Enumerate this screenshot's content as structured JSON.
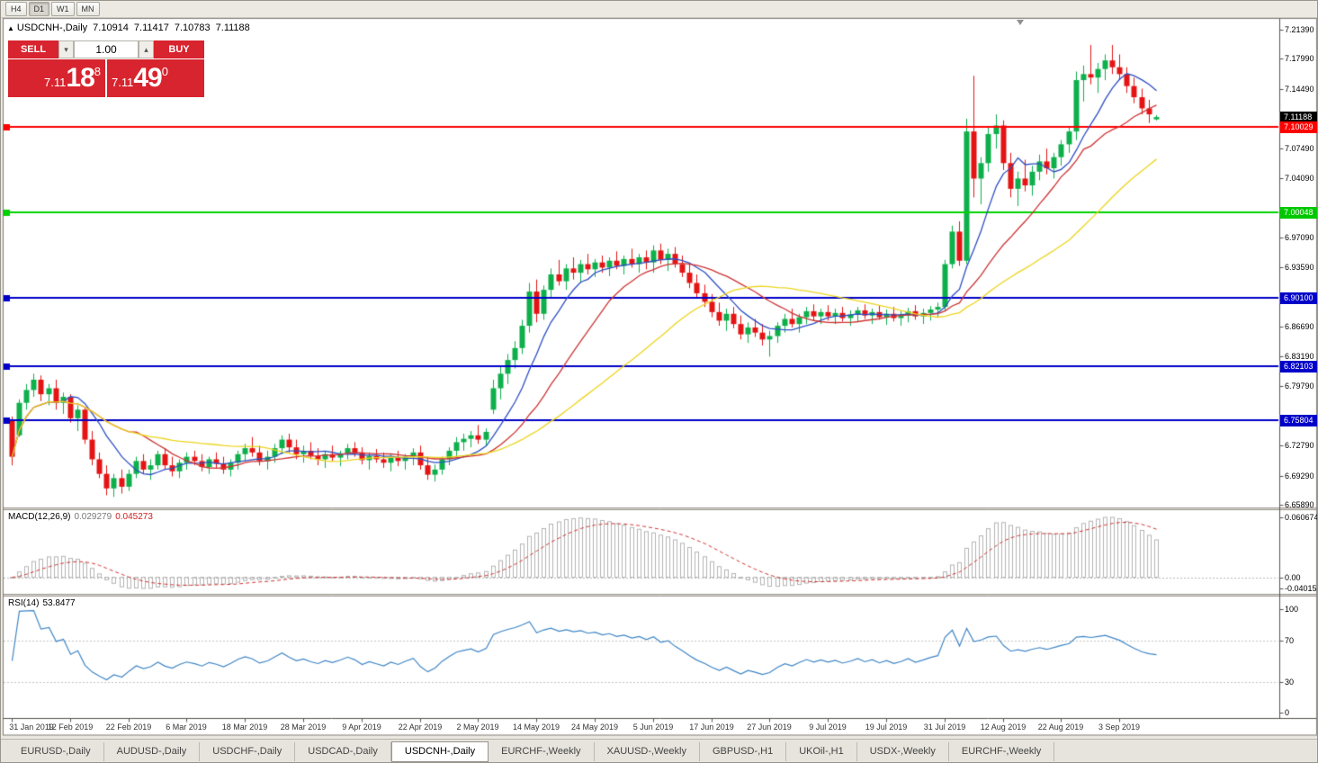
{
  "toolbar": {
    "timeframes": [
      "H4",
      "D1",
      "W1",
      "MN"
    ],
    "active_timeframe": "D1"
  },
  "chart": {
    "info_line": {
      "collapse_icon": "▲",
      "title": "USDCNH-,Daily",
      "open": "7.10914",
      "high": "7.11417",
      "low": "7.10783",
      "close": "7.11188"
    },
    "trade_panel": {
      "sell_label": "SELL",
      "buy_label": "BUY",
      "volume": "1.00",
      "spinner_down_icon": "▾",
      "spinner_up_icon": "▴",
      "sell_price_prefix": "7.11",
      "sell_price_main": "18",
      "sell_price_sup": "8",
      "buy_price_prefix": "7.11",
      "buy_price_main": "49",
      "buy_price_sup": "0"
    },
    "price_axis": {
      "labels": [
        "7.21390",
        "7.17990",
        "7.14490",
        "7.07490",
        "7.04090",
        "6.97090",
        "6.93590",
        "6.86690",
        "6.83190",
        "6.79790",
        "6.72790",
        "6.69290",
        "6.65890"
      ],
      "badges": [
        {
          "text": "7.11188",
          "price": 7.11188,
          "bg": "#000000",
          "name": "current-price-badge"
        },
        {
          "text": "7.10029",
          "price": 7.10029,
          "bg": "#ff0000",
          "name": "resistance-line-badge"
        },
        {
          "text": "7.00048",
          "price": 7.00048,
          "bg": "#00c800",
          "name": "support-line-badge-green"
        },
        {
          "text": "6.90100",
          "price": 6.901,
          "bg": "#0000c8",
          "name": "support-line-badge-blue-1"
        },
        {
          "text": "6.82103",
          "price": 6.82103,
          "bg": "#0000c8",
          "name": "support-line-badge-blue-2"
        },
        {
          "text": "6.75804",
          "price": 6.75804,
          "bg": "#0000c8",
          "name": "support-line-badge-blue-3"
        }
      ]
    },
    "hlines": [
      {
        "price": 7.10029,
        "color": "#ff0000"
      },
      {
        "price": 7.00048,
        "color": "#00d200"
      },
      {
        "price": 6.901,
        "color": "#0000c8"
      },
      {
        "price": 6.82103,
        "color": "#0000c8"
      },
      {
        "price": 6.75804,
        "color": "#0000c8"
      }
    ],
    "colors": {
      "bull": "#0db04b",
      "bear": "#e51414",
      "ma_fast": "#2e4fc4",
      "ma_mid": "#cf3434",
      "ma_slow": "#ecd51e",
      "macd_hist": "#b4b4b4",
      "macd_signal": "#d23434",
      "rsi_line": "#3f86c6"
    }
  },
  "chart_data": {
    "type": "candlestick",
    "title": "USDCNH-,Daily",
    "label_every_n_candles": 8,
    "dates": [
      "31 Jan 2019",
      "12 Feb 2019",
      "22 Feb 2019",
      "6 Mar 2019",
      "18 Mar 2019",
      "28 Mar 2019",
      "9 Apr 2019",
      "22 Apr 2019",
      "2 May 2019",
      "14 May 2019",
      "24 May 2019",
      "5 Jun 2019",
      "17 Jun 2019",
      "27 Jun 2019",
      "9 Jul 2019",
      "19 Jul 2019",
      "31 Jul 2019",
      "12 Aug 2019",
      "22 Aug 2019",
      "3 Sep 2019"
    ],
    "ma_periods": [
      8,
      17,
      34
    ],
    "y_axis_anchor": {
      "top_price": 7.2139,
      "bottom_price": 6.6589
    },
    "ohlc": [
      [
        6.758,
        6.762,
        6.705,
        6.715
      ],
      [
        6.74,
        6.782,
        6.738,
        6.778
      ],
      [
        6.778,
        6.8,
        6.77,
        6.793
      ],
      [
        6.793,
        6.812,
        6.785,
        6.805
      ],
      [
        6.805,
        6.81,
        6.78,
        6.788
      ],
      [
        6.788,
        6.8,
        6.775,
        6.795
      ],
      [
        6.795,
        6.805,
        6.77,
        6.778
      ],
      [
        6.778,
        6.79,
        6.765,
        6.785
      ],
      [
        6.785,
        6.788,
        6.755,
        6.76
      ],
      [
        6.76,
        6.775,
        6.745,
        6.77
      ],
      [
        6.77,
        6.772,
        6.73,
        6.735
      ],
      [
        6.735,
        6.745,
        6.705,
        6.712
      ],
      [
        6.712,
        6.72,
        6.69,
        6.695
      ],
      [
        6.695,
        6.705,
        6.67,
        6.678
      ],
      [
        6.678,
        6.695,
        6.668,
        6.69
      ],
      [
        6.69,
        6.7,
        6.672,
        6.68
      ],
      [
        6.68,
        6.7,
        6.675,
        6.695
      ],
      [
        6.695,
        6.715,
        6.69,
        6.71
      ],
      [
        6.71,
        6.718,
        6.695,
        6.7
      ],
      [
        6.7,
        6.712,
        6.688,
        6.705
      ],
      [
        6.705,
        6.722,
        6.7,
        6.718
      ],
      [
        6.718,
        6.725,
        6.7,
        6.705
      ],
      [
        6.705,
        6.715,
        6.692,
        6.698
      ],
      [
        6.698,
        6.712,
        6.69,
        6.708
      ],
      [
        6.708,
        6.72,
        6.7,
        6.715
      ],
      [
        6.715,
        6.722,
        6.705,
        6.71
      ],
      [
        6.71,
        6.718,
        6.698,
        6.703
      ],
      [
        6.703,
        6.715,
        6.695,
        6.712
      ],
      [
        6.712,
        6.72,
        6.702,
        6.707
      ],
      [
        6.707,
        6.715,
        6.695,
        6.7
      ],
      [
        6.7,
        6.712,
        6.692,
        6.708
      ],
      [
        6.708,
        6.722,
        6.7,
        6.718
      ],
      [
        6.718,
        6.73,
        6.71,
        6.725
      ],
      [
        6.725,
        6.738,
        6.715,
        6.72
      ],
      [
        6.72,
        6.728,
        6.705,
        6.71
      ],
      [
        6.71,
        6.722,
        6.7,
        6.715
      ],
      [
        6.715,
        6.73,
        6.708,
        6.725
      ],
      [
        6.725,
        6.74,
        6.718,
        6.735
      ],
      [
        6.735,
        6.742,
        6.72,
        6.726
      ],
      [
        6.726,
        6.735,
        6.712,
        6.718
      ],
      [
        6.718,
        6.728,
        6.708,
        6.722
      ],
      [
        6.722,
        6.732,
        6.712,
        6.716
      ],
      [
        6.716,
        6.725,
        6.705,
        6.712
      ],
      [
        6.712,
        6.722,
        6.702,
        6.718
      ],
      [
        6.718,
        6.728,
        6.71,
        6.714
      ],
      [
        6.714,
        6.722,
        6.704,
        6.719
      ],
      [
        6.719,
        6.73,
        6.712,
        6.725
      ],
      [
        6.725,
        6.732,
        6.715,
        6.72
      ],
      [
        6.72,
        6.726,
        6.706,
        6.711
      ],
      [
        6.711,
        6.72,
        6.7,
        6.716
      ],
      [
        6.716,
        6.724,
        6.708,
        6.712
      ],
      [
        6.712,
        6.72,
        6.702,
        6.708
      ],
      [
        6.708,
        6.718,
        6.698,
        6.714
      ],
      [
        6.714,
        6.722,
        6.704,
        6.71
      ],
      [
        6.71,
        6.718,
        6.7,
        6.715
      ],
      [
        6.715,
        6.725,
        6.705,
        6.72
      ],
      [
        6.72,
        6.728,
        6.7,
        6.705
      ],
      [
        6.705,
        6.715,
        6.688,
        6.694
      ],
      [
        6.694,
        6.706,
        6.686,
        6.7
      ],
      [
        6.7,
        6.715,
        6.694,
        6.712
      ],
      [
        6.712,
        6.726,
        6.705,
        6.722
      ],
      [
        6.722,
        6.738,
        6.715,
        6.732
      ],
      [
        6.732,
        6.742,
        6.722,
        6.736
      ],
      [
        6.736,
        6.745,
        6.726,
        6.74
      ],
      [
        6.74,
        6.752,
        6.73,
        6.735
      ],
      [
        6.735,
        6.748,
        6.728,
        6.744
      ],
      [
        6.77,
        6.805,
        6.765,
        6.795
      ],
      [
        6.795,
        6.82,
        6.782,
        6.812
      ],
      [
        6.812,
        6.835,
        6.8,
        6.828
      ],
      [
        6.828,
        6.85,
        6.818,
        6.842
      ],
      [
        6.842,
        6.875,
        6.835,
        6.868
      ],
      [
        6.868,
        6.918,
        6.86,
        6.908
      ],
      [
        6.908,
        6.922,
        6.872,
        6.882
      ],
      [
        6.882,
        6.915,
        6.875,
        6.91
      ],
      [
        6.91,
        6.935,
        6.9,
        6.928
      ],
      [
        6.928,
        6.945,
        6.915,
        6.92
      ],
      [
        6.92,
        6.94,
        6.91,
        6.935
      ],
      [
        6.935,
        6.948,
        6.922,
        6.93
      ],
      [
        6.93,
        6.945,
        6.918,
        6.94
      ],
      [
        6.94,
        6.952,
        6.928,
        6.934
      ],
      [
        6.934,
        6.946,
        6.925,
        6.942
      ],
      [
        6.942,
        6.95,
        6.93,
        6.936
      ],
      [
        6.936,
        6.948,
        6.926,
        6.944
      ],
      [
        6.944,
        6.955,
        6.934,
        6.938
      ],
      [
        6.938,
        6.95,
        6.928,
        6.946
      ],
      [
        6.946,
        6.958,
        6.936,
        6.94
      ],
      [
        6.94,
        6.952,
        6.93,
        6.948
      ],
      [
        6.948,
        6.956,
        6.934,
        6.942
      ],
      [
        6.942,
        6.962,
        6.93,
        6.956
      ],
      [
        6.956,
        6.964,
        6.94,
        6.945
      ],
      [
        6.945,
        6.958,
        6.932,
        6.952
      ],
      [
        6.952,
        6.96,
        6.936,
        6.94
      ],
      [
        6.94,
        6.95,
        6.925,
        6.93
      ],
      [
        6.93,
        6.94,
        6.912,
        6.918
      ],
      [
        6.918,
        6.928,
        6.9,
        6.906
      ],
      [
        6.906,
        6.916,
        6.89,
        6.896
      ],
      [
        6.896,
        6.905,
        6.878,
        6.884
      ],
      [
        6.884,
        6.895,
        6.868,
        6.874
      ],
      [
        6.874,
        6.888,
        6.862,
        6.882
      ],
      [
        6.882,
        6.89,
        6.865,
        6.87
      ],
      [
        6.87,
        6.88,
        6.852,
        6.858
      ],
      [
        6.858,
        6.872,
        6.848,
        6.866
      ],
      [
        6.866,
        6.876,
        6.855,
        6.86
      ],
      [
        6.86,
        6.87,
        6.845,
        6.852
      ],
      [
        6.852,
        6.862,
        6.832,
        6.856
      ],
      [
        6.856,
        6.872,
        6.848,
        6.868
      ],
      [
        6.868,
        6.882,
        6.86,
        6.876
      ],
      [
        6.876,
        6.888,
        6.866,
        6.87
      ],
      [
        6.87,
        6.882,
        6.86,
        6.878
      ],
      [
        6.878,
        6.89,
        6.87,
        6.885
      ],
      [
        6.885,
        6.893,
        6.874,
        6.879
      ],
      [
        6.879,
        6.888,
        6.87,
        6.884
      ],
      [
        6.884,
        6.892,
        6.874,
        6.879
      ],
      [
        6.879,
        6.888,
        6.87,
        6.883
      ],
      [
        6.883,
        6.89,
        6.873,
        6.877
      ],
      [
        6.877,
        6.886,
        6.868,
        6.881
      ],
      [
        6.881,
        6.89,
        6.872,
        6.886
      ],
      [
        6.886,
        6.893,
        6.876,
        6.88
      ],
      [
        6.88,
        6.888,
        6.87,
        6.884
      ],
      [
        6.884,
        6.892,
        6.875,
        6.878
      ],
      [
        6.878,
        6.887,
        6.869,
        6.882
      ],
      [
        6.882,
        6.89,
        6.873,
        6.877
      ],
      [
        6.877,
        6.885,
        6.868,
        6.88
      ],
      [
        6.88,
        6.889,
        6.872,
        6.885
      ],
      [
        6.885,
        6.892,
        6.875,
        6.879
      ],
      [
        6.879,
        6.888,
        6.87,
        6.883
      ],
      [
        6.883,
        6.891,
        6.874,
        6.887
      ],
      [
        6.887,
        6.895,
        6.878,
        6.89
      ],
      [
        6.89,
        6.945,
        6.885,
        6.94
      ],
      [
        6.94,
        6.985,
        6.935,
        6.978
      ],
      [
        6.978,
        6.99,
        6.938,
        6.944
      ],
      [
        6.944,
        7.11,
        6.94,
        7.095
      ],
      [
        7.095,
        7.16,
        7.018,
        7.04
      ],
      [
        7.04,
        7.065,
        7.01,
        7.058
      ],
      [
        7.058,
        7.1,
        7.048,
        7.092
      ],
      [
        7.092,
        7.115,
        7.075,
        7.102
      ],
      [
        7.102,
        7.108,
        7.05,
        7.058
      ],
      [
        7.058,
        7.07,
        7.018,
        7.028
      ],
      [
        7.028,
        7.048,
        7.008,
        7.04
      ],
      [
        7.04,
        7.062,
        7.025,
        7.032
      ],
      [
        7.032,
        7.055,
        7.02,
        7.048
      ],
      [
        7.048,
        7.068,
        7.038,
        7.06
      ],
      [
        7.06,
        7.075,
        7.045,
        7.052
      ],
      [
        7.052,
        7.07,
        7.04,
        7.065
      ],
      [
        7.065,
        7.085,
        7.055,
        7.08
      ],
      [
        7.08,
        7.1,
        7.07,
        7.095
      ],
      [
        7.095,
        7.165,
        7.085,
        7.155
      ],
      [
        7.155,
        7.172,
        7.13,
        7.162
      ],
      [
        7.162,
        7.196,
        7.15,
        7.158
      ],
      [
        7.158,
        7.175,
        7.14,
        7.168
      ],
      [
        7.168,
        7.185,
        7.155,
        7.178
      ],
      [
        7.178,
        7.196,
        7.162,
        7.17
      ],
      [
        7.17,
        7.185,
        7.155,
        7.162
      ],
      [
        7.162,
        7.17,
        7.14,
        7.148
      ],
      [
        7.148,
        7.158,
        7.128,
        7.135
      ],
      [
        7.135,
        7.145,
        7.115,
        7.122
      ],
      [
        7.122,
        7.132,
        7.105,
        7.115
      ],
      [
        7.10914,
        7.11417,
        7.10783,
        7.11188
      ]
    ]
  },
  "macd_pane": {
    "label": "MACD(12,26,9)",
    "value_main": "0.029279",
    "value_signal": "0.045273",
    "params": [
      12,
      26,
      9
    ],
    "axis_labels": [
      "0.060674",
      "0.00",
      "-0.040152"
    ]
  },
  "rsi_pane": {
    "label": "RSI(14)",
    "value": "53.8477",
    "period": 14,
    "axis_labels": [
      "100",
      "70",
      "30",
      "0"
    ],
    "axis_values": [
      100,
      70,
      30,
      0
    ],
    "levels": [
      70,
      30
    ]
  },
  "tabs": {
    "items": [
      {
        "label": "EURUSD-,Daily",
        "active": false
      },
      {
        "label": "AUDUSD-,Daily",
        "active": false
      },
      {
        "label": "USDCHF-,Daily",
        "active": false
      },
      {
        "label": "USDCAD-,Daily",
        "active": false
      },
      {
        "label": "USDCNH-,Daily",
        "active": true
      },
      {
        "label": "EURCHF-,Weekly",
        "active": false
      },
      {
        "label": "XAUUSD-,Weekly",
        "active": false
      },
      {
        "label": "GBPUSD-,H1",
        "active": false
      },
      {
        "label": "UKOil-,H1",
        "active": false
      },
      {
        "label": "USDX-,Weekly",
        "active": false
      },
      {
        "label": "EURCHF-,Weekly",
        "active": false
      }
    ]
  }
}
